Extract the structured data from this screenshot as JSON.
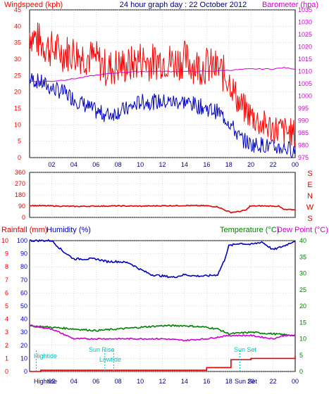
{
  "header": {
    "left": "Windspeed (kph)",
    "center": "24 hour graph day : 22 October 2012",
    "right": "Barometer (hpa)"
  },
  "mid_labels": [
    "S",
    "E",
    "N",
    "W",
    "S"
  ],
  "bottom_header": {
    "rainfall": "Rainfall (mm)",
    "humidity": "Humidity (%)",
    "temperature": "Temperature (°C)",
    "dewpoint": "Dew Point (°C)"
  },
  "events": {
    "hightide": "Hightide",
    "sunrise": "Sun Rise",
    "lowtide": "Lowtide",
    "sunset": "Sun Set",
    "bottom_hightide": "Hightide",
    "bottom_sunset": "Sun Set"
  },
  "colors": {
    "frame": "#000000",
    "grid": "#c0c0c0",
    "wind_gust": "#ff0000",
    "wind_avg": "#0000c0",
    "barometer": "#d000d0",
    "direction": "#e00000",
    "humidity": "#0000c0",
    "temperature": "#008000",
    "dewpoint": "#d000d0",
    "rainfall": "#e00000",
    "events": "#00c0c0"
  },
  "chart_data": [
    {
      "type": "line",
      "x_ticks": [
        "02",
        "04",
        "06",
        "08",
        "10",
        "12",
        "14",
        "16",
        "18",
        "20",
        "22",
        "00"
      ],
      "left_axis": {
        "ylim": [
          0,
          45
        ],
        "ticks": [
          0,
          5,
          10,
          15,
          20,
          25,
          30,
          35,
          40,
          45
        ]
      },
      "right_axis": {
        "ylim": [
          975,
          1035
        ],
        "ticks": [
          975,
          980,
          985,
          990,
          995,
          1000,
          1005,
          1010,
          1015,
          1020,
          1025,
          1030,
          1035
        ]
      },
      "series": [
        {
          "name": "Windspeed (kph)",
          "axis": "left",
          "gust_points": [
            [
              0,
              38
            ],
            [
              1,
              35
            ],
            [
              2,
              33
            ],
            [
              3,
              32
            ],
            [
              4,
              32
            ],
            [
              5,
              31
            ],
            [
              6,
              30
            ],
            [
              7,
              27
            ],
            [
              8,
              28
            ],
            [
              9,
              28
            ],
            [
              10,
              30
            ],
            [
              11,
              29
            ],
            [
              12,
              30
            ],
            [
              13,
              29
            ],
            [
              14,
              30
            ],
            [
              15,
              28
            ],
            [
              16,
              28
            ],
            [
              17,
              27
            ],
            [
              18,
              24
            ],
            [
              19,
              16
            ],
            [
              20,
              13
            ],
            [
              21,
              10
            ],
            [
              22,
              9
            ],
            [
              23,
              8
            ],
            [
              24,
              7
            ]
          ],
          "avg_points": [
            [
              0,
              24
            ],
            [
              1,
              23
            ],
            [
              2,
              21
            ],
            [
              3,
              20
            ],
            [
              4,
              18
            ],
            [
              5,
              16
            ],
            [
              6,
              14
            ],
            [
              7,
              13
            ],
            [
              8,
              14
            ],
            [
              9,
              15
            ],
            [
              10,
              17
            ],
            [
              11,
              17
            ],
            [
              12,
              17
            ],
            [
              13,
              17
            ],
            [
              14,
              17
            ],
            [
              15,
              16
            ],
            [
              16,
              15
            ],
            [
              17,
              14
            ],
            [
              18,
              11
            ],
            [
              19,
              6
            ],
            [
              20,
              4
            ],
            [
              21,
              4
            ],
            [
              22,
              3
            ],
            [
              23,
              3
            ],
            [
              24,
              2
            ]
          ]
        },
        {
          "name": "Barometer (hpa)",
          "axis": "right",
          "points": [
            [
              0,
              1006
            ],
            [
              2,
              1006
            ],
            [
              4,
              1007
            ],
            [
              6,
              1008.5
            ],
            [
              8,
              1009.5
            ],
            [
              10,
              1010
            ],
            [
              12,
              1010
            ],
            [
              14,
              1010
            ],
            [
              16,
              1010
            ],
            [
              18,
              1010.5
            ],
            [
              20,
              1011
            ],
            [
              22,
              1011
            ],
            [
              23,
              1011.5
            ],
            [
              24,
              1011
            ]
          ]
        }
      ]
    },
    {
      "type": "line",
      "left_axis": {
        "ylim": [
          0,
          360
        ],
        "ticks": [
          0,
          90,
          180,
          270,
          360
        ]
      },
      "series": [
        {
          "name": "Wind direction",
          "points": [
            [
              0,
              95
            ],
            [
              2,
              92
            ],
            [
              4,
              88
            ],
            [
              6,
              90
            ],
            [
              8,
              92
            ],
            [
              10,
              90
            ],
            [
              12,
              93
            ],
            [
              14,
              95
            ],
            [
              16,
              93
            ],
            [
              17,
              85
            ],
            [
              17.6,
              60
            ],
            [
              18.2,
              40
            ],
            [
              19,
              48
            ],
            [
              19.6,
              60
            ],
            [
              19.9,
              90
            ],
            [
              21,
              92
            ],
            [
              22.5,
              90
            ],
            [
              23,
              62
            ],
            [
              24,
              62
            ]
          ]
        }
      ]
    },
    {
      "type": "line",
      "left_axis": {
        "label": "Rainfall (mm)",
        "ylim": [
          0,
          10
        ],
        "ticks": [
          0,
          1,
          2,
          3,
          4,
          5,
          6,
          7,
          8,
          9,
          10
        ]
      },
      "humidity_axis": {
        "label": "Humidity (%)",
        "ylim": [
          0,
          100
        ],
        "ticks": [
          0,
          10,
          20,
          30,
          40,
          50,
          60,
          70,
          80,
          90,
          100
        ]
      },
      "right_axis": {
        "label": "Temperature (°C)",
        "ylim": [
          0,
          40
        ],
        "ticks": [
          0,
          5,
          10,
          15,
          20,
          25,
          30,
          35,
          40
        ]
      },
      "series": [
        {
          "name": "Humidity (%)",
          "axis": "humidity",
          "points": [
            [
              0,
              100
            ],
            [
              2,
              100
            ],
            [
              3,
              92
            ],
            [
              4,
              86
            ],
            [
              5,
              86
            ],
            [
              6,
              86
            ],
            [
              7,
              84
            ],
            [
              8,
              84
            ],
            [
              9,
              83
            ],
            [
              10,
              78
            ],
            [
              11,
              74
            ],
            [
              12,
              73
            ],
            [
              13,
              72
            ],
            [
              14,
              74
            ],
            [
              15,
              73
            ],
            [
              16,
              73
            ],
            [
              17,
              74
            ],
            [
              17.6,
              85
            ],
            [
              18,
              96
            ],
            [
              19,
              98
            ],
            [
              20,
              97
            ],
            [
              21,
              99
            ],
            [
              22,
              93
            ],
            [
              23,
              96
            ],
            [
              24,
              100
            ]
          ]
        },
        {
          "name": "Temperature (°C)",
          "axis": "right",
          "points": [
            [
              0,
              14
            ],
            [
              2,
              13.5
            ],
            [
              4,
              13
            ],
            [
              6,
              12.5
            ],
            [
              8,
              13
            ],
            [
              10,
              13.5
            ],
            [
              12,
              14
            ],
            [
              14,
              14
            ],
            [
              16,
              13.5
            ],
            [
              17,
              13
            ],
            [
              18,
              11.5
            ],
            [
              20,
              12
            ],
            [
              22,
              11.5
            ],
            [
              24,
              11
            ]
          ]
        },
        {
          "name": "Dew Point (°C)",
          "axis": "right",
          "points": [
            [
              0,
              14
            ],
            [
              1,
              13.5
            ],
            [
              2,
              13
            ],
            [
              3,
              11.5
            ],
            [
              4,
              10
            ],
            [
              6,
              10
            ],
            [
              8,
              10
            ],
            [
              10,
              10
            ],
            [
              12,
              10
            ],
            [
              14,
              9.5
            ],
            [
              16,
              10
            ],
            [
              17,
              10.5
            ],
            [
              18,
              11
            ],
            [
              20,
              11
            ],
            [
              22,
              10
            ],
            [
              23,
              11
            ],
            [
              24,
              11
            ]
          ]
        },
        {
          "name": "Rainfall (mm)",
          "axis": "left",
          "points": [
            [
              0,
              0
            ],
            [
              1,
              0.1
            ],
            [
              16,
              0.3
            ],
            [
              18,
              0.3
            ],
            [
              18.2,
              0.9
            ],
            [
              20,
              1
            ],
            [
              22,
              1
            ],
            [
              24,
              1.2
            ]
          ]
        }
      ]
    }
  ]
}
